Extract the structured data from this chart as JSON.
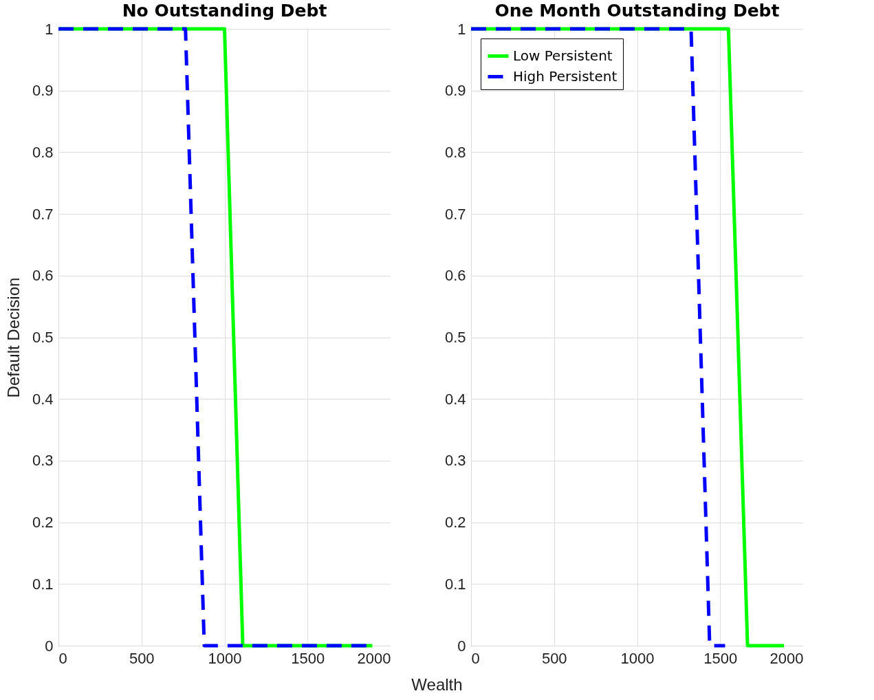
{
  "chart_data": [
    {
      "type": "line",
      "title": "No Outstanding Debt",
      "xlabel": "Wealth",
      "ylabel": "Default Decision",
      "xlim": [
        0,
        2000
      ],
      "ylim": [
        0,
        1
      ],
      "xticks": [
        0,
        500,
        1000,
        1500,
        2000
      ],
      "yticks": [
        0,
        0.1,
        0.2,
        0.3,
        0.4,
        0.5,
        0.6,
        0.7,
        0.8,
        0.9,
        1
      ],
      "grid": true,
      "series": [
        {
          "color": "#00ff00",
          "line_style": "solid",
          "x": [
            0,
            1000,
            1110,
            1890
          ],
          "values": [
            1,
            1,
            0,
            0
          ]
        },
        {
          "color": "#0000ff",
          "line_style": "dashed",
          "x": [
            0,
            765,
            878,
            1890
          ],
          "values": [
            1,
            1,
            0,
            0
          ]
        }
      ]
    },
    {
      "type": "line",
      "title": "One Month Outstanding Debt",
      "xlim": [
        0,
        2000
      ],
      "ylim": [
        0,
        1
      ],
      "xticks": [
        0,
        500,
        1000,
        1500,
        2000
      ],
      "yticks": [
        0,
        0.1,
        0.2,
        0.3,
        0.4,
        0.5,
        0.6,
        0.7,
        0.8,
        0.9,
        1
      ],
      "grid": true,
      "legend": "top left",
      "series": [
        {
          "name": "Low Persistent",
          "color": "#00ff00",
          "line_style": "solid",
          "x": [
            0,
            1550,
            1665,
            1885
          ],
          "values": [
            1,
            1,
            0,
            0
          ]
        },
        {
          "name": "High Persistent",
          "color": "#0000ff",
          "line_style": "dashed",
          "x": [
            0,
            1325,
            1437,
            1530
          ],
          "values": [
            1,
            1,
            0,
            0
          ]
        }
      ]
    }
  ]
}
